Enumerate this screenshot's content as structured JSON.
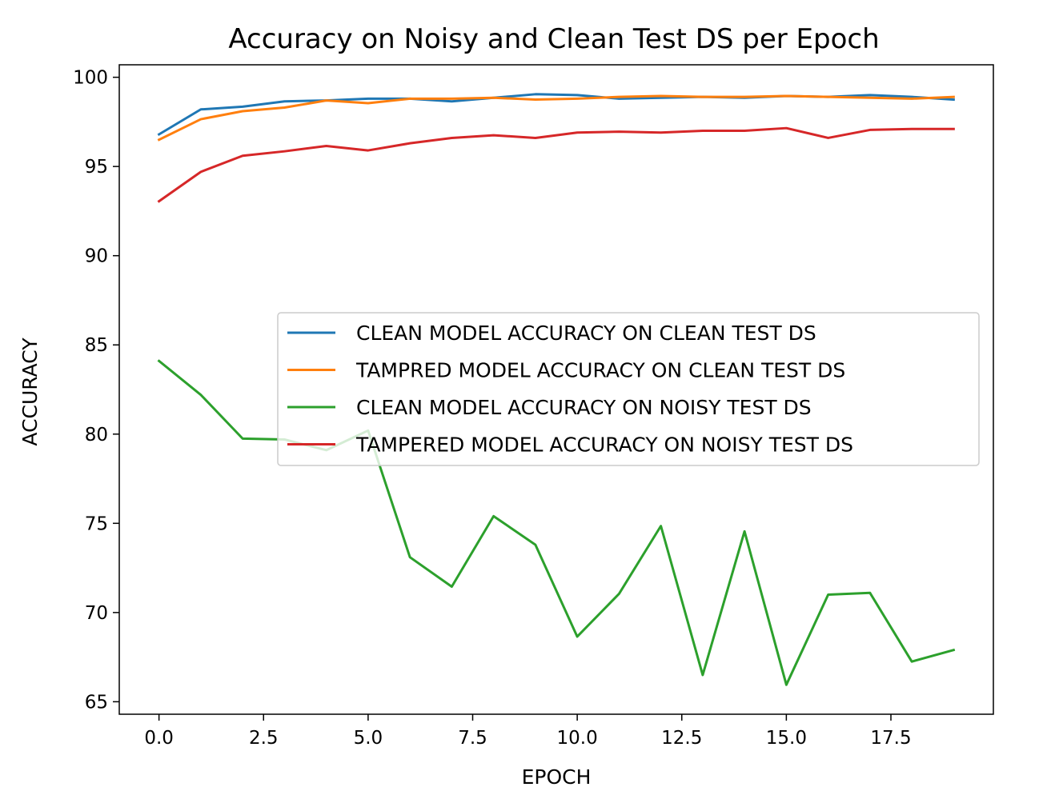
{
  "chart_data": {
    "type": "line",
    "title": "Accuracy on Noisy and Clean Test DS per Epoch",
    "xlabel": "EPOCH",
    "ylabel": "ACCURACY",
    "xlim": [
      -0.95,
      19.95
    ],
    "ylim": [
      64.3,
      100.7
    ],
    "xticks": [
      0.0,
      2.5,
      5.0,
      7.5,
      10.0,
      12.5,
      15.0,
      17.5
    ],
    "xtick_labels": [
      "0.0",
      "2.5",
      "5.0",
      "7.5",
      "10.0",
      "12.5",
      "15.0",
      "17.5"
    ],
    "yticks": [
      65,
      70,
      75,
      80,
      85,
      90,
      95,
      100
    ],
    "ytick_labels": [
      "65",
      "70",
      "75",
      "80",
      "85",
      "90",
      "95",
      "100"
    ],
    "grid": false,
    "legend_position": "center-right",
    "x": [
      0,
      1,
      2,
      3,
      4,
      5,
      6,
      7,
      8,
      9,
      10,
      11,
      12,
      13,
      14,
      15,
      16,
      17,
      18,
      19
    ],
    "series": [
      {
        "name": "CLEAN MODEL ACCURACY ON CLEAN TEST DS",
        "color": "#1f77b4",
        "values": [
          96.8,
          98.2,
          98.35,
          98.65,
          98.7,
          98.8,
          98.8,
          98.65,
          98.85,
          99.05,
          99.0,
          98.8,
          98.85,
          98.9,
          98.85,
          98.95,
          98.9,
          99.0,
          98.9,
          98.75
        ]
      },
      {
        "name": "TAMPRED MODEL ACCURACY ON CLEAN TEST DS",
        "color": "#ff7f0e",
        "values": [
          96.5,
          97.65,
          98.1,
          98.3,
          98.7,
          98.55,
          98.8,
          98.8,
          98.85,
          98.75,
          98.8,
          98.9,
          98.95,
          98.9,
          98.9,
          98.95,
          98.9,
          98.85,
          98.8,
          98.9
        ]
      },
      {
        "name": "CLEAN MODEL ACCURACY ON NOISY TEST DS",
        "color": "#2ca02c",
        "values": [
          84.1,
          82.2,
          79.75,
          79.7,
          79.1,
          80.2,
          73.1,
          71.45,
          75.4,
          73.8,
          68.65,
          71.05,
          74.85,
          66.5,
          74.55,
          65.95,
          71.0,
          71.1,
          67.25,
          67.9
        ]
      },
      {
        "name": "TAMPERED MODEL ACCURACY ON NOISY TEST DS",
        "color": "#d62728",
        "values": [
          93.05,
          94.7,
          95.6,
          95.85,
          96.15,
          95.9,
          96.3,
          96.6,
          96.75,
          96.6,
          96.9,
          96.95,
          96.9,
          97.0,
          97.0,
          97.15,
          96.6,
          97.05,
          97.1,
          97.1
        ]
      }
    ]
  }
}
